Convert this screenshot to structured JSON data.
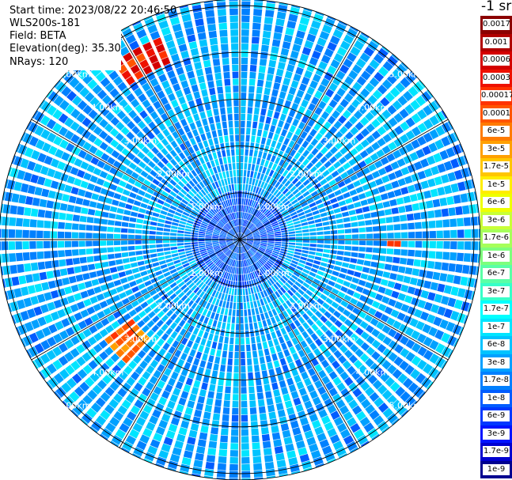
{
  "header": {
    "start_time": "Start time: 2023/08/22 20:46:50",
    "instrument": "WLS200s-181",
    "field": "Field: BETA",
    "elevation": "Elevation(deg): 35.30",
    "nrays": "NRays: 120"
  },
  "units_label": "-1 sr",
  "colorbar": {
    "labels": [
      "0.0017",
      "0.001",
      "0.0006",
      "0.0003",
      "0.00017",
      "0.0001",
      "6e-5",
      "3e-5",
      "1.7e-5",
      "1e-5",
      "6e-6",
      "3e-6",
      "1.7e-6",
      "1e-6",
      "6e-7",
      "3e-7",
      "1.7e-7",
      "1e-7",
      "6e-8",
      "3e-8",
      "1.7e-8",
      "1e-8",
      "6e-9",
      "3e-9",
      "1.7e-9",
      "1e-9"
    ],
    "colors": [
      "#8b0000",
      "#b00000",
      "#d40000",
      "#ee1100",
      "#ff3300",
      "#ff5500",
      "#ff7b00",
      "#ffa000",
      "#ffc600",
      "#ffee00",
      "#eeff00",
      "#c8ff37",
      "#a6ff5a",
      "#7dff7d",
      "#5affa6",
      "#37ffc8",
      "#00ffff",
      "#00e5ff",
      "#00c3ff",
      "#00a0ff",
      "#0080ff",
      "#005cff",
      "#0038ff",
      "#0014ff",
      "#0000d0",
      "#000090"
    ]
  },
  "chart_data": {
    "type": "heatmap",
    "projection": "polar-ppi",
    "field": "BETA",
    "units": "sr-1",
    "elevation_deg": 35.3,
    "nrays": 120,
    "range_rings_km": [
      1.0,
      2.0,
      3.0,
      4.0,
      5.0
    ],
    "range_ring_labels": [
      "1.00km",
      "2.00km",
      "3.00km",
      "4.00km",
      "5.00km"
    ],
    "spoke_angles_deg": [
      0,
      30,
      60,
      90,
      120,
      150,
      180,
      210,
      240,
      270,
      300,
      330
    ],
    "max_range_km": 5.8,
    "color_scale": "log",
    "value_range": [
      1e-09,
      0.0017
    ],
    "background_typical_value": 3e-08,
    "near_field_value": 1e-08,
    "features": [
      {
        "description": "high backscatter arc",
        "azimuth_deg": [
          323,
          338
        ],
        "range_km": [
          4.0,
          4.6
        ],
        "peak_value": 0.0006
      },
      {
        "description": "high backscatter patch",
        "azimuth_deg": [
          89,
          93
        ],
        "range_km": [
          3.2,
          3.4
        ],
        "peak_value": 0.0003
      },
      {
        "description": "high backscatter arc",
        "azimuth_deg": [
          223,
          233
        ],
        "range_km": [
          2.8,
          3.6
        ],
        "peak_value": 0.00017
      }
    ]
  }
}
